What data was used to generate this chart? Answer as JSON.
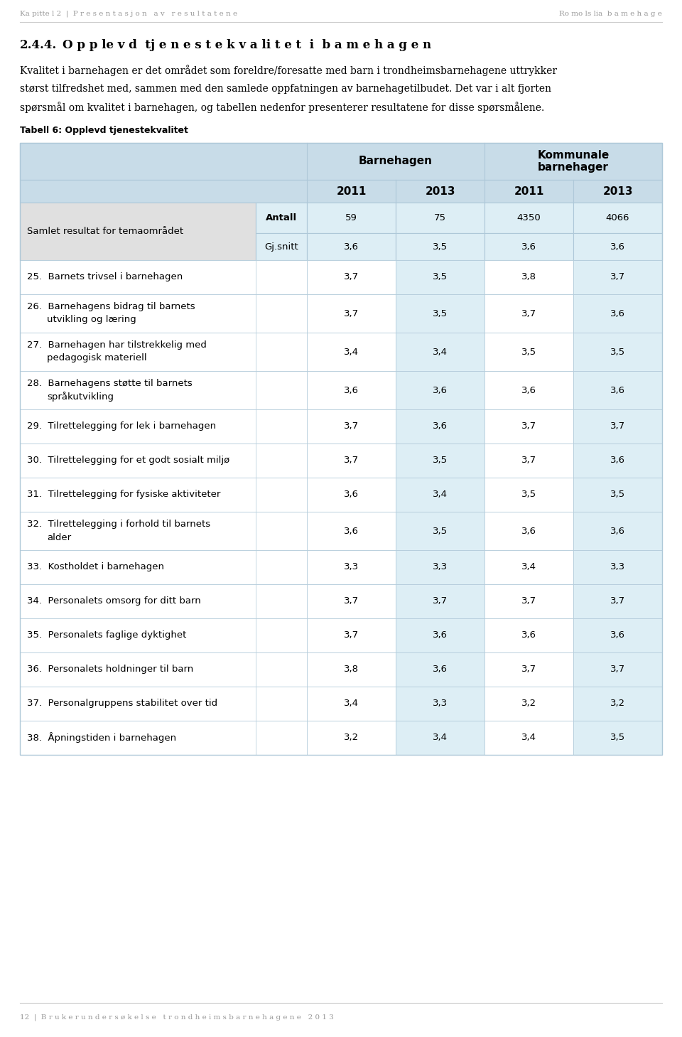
{
  "page_header_left": "Ka pitte l 2  |  P r e s e n t a s j o n   a v   r e s u l t a t e n e",
  "page_header_right": "Ro mo ls lia  b a m e h a g e",
  "section_num": "2.4.4.",
  "section_title": "O p p le v d  tj e n e s t e k v a li t e t  i  b a m e h a g e n",
  "body_line1": "Kvalitet i barnehagen er det området som foreldre/foresatte med barn i trondheimsbarnehagene uttrykker",
  "body_line2": "størst tilfredshet med, sammen med den samlede oppfatningen av barnehagetilbudet. Det var i alt fjorten",
  "body_line3": "spørsmål om kvalitet i barnehagen, og tabellen nedenfor presenterer resultatene for disse spørsmålene.",
  "table_title": "Tabell 6: Opplevd tjenestekvalitet",
  "col_header_1": "Barnehagen",
  "col_header_2": "Kommunale\nbarnehager",
  "year_headers": [
    "2011",
    "2013",
    "2011",
    "2013"
  ],
  "row_label_antall": "Antall",
  "row_label_gjsnitt": "Gj.snitt",
  "row_samlet": "Samlet resultat for temaområdet",
  "antall_values": [
    "59",
    "75",
    "4350",
    "4066"
  ],
  "gjsnitt_values": [
    "3,6",
    "3,5",
    "3,6",
    "3,6"
  ],
  "rows": [
    {
      "num": "25.",
      "label": "Barnets trivsel i barnehagen",
      "vals": [
        "3,7",
        "3,5",
        "3,8",
        "3,7"
      ],
      "multiline": false
    },
    {
      "num": "26.",
      "label1": "Barnehagens bidrag til barnets",
      "label2": "utvikling og læring",
      "vals": [
        "3,7",
        "3,5",
        "3,7",
        "3,6"
      ],
      "multiline": true
    },
    {
      "num": "27.",
      "label1": "Barnehagen har tilstrekkelig med",
      "label2": "pedagogisk materiell",
      "vals": [
        "3,4",
        "3,4",
        "3,5",
        "3,5"
      ],
      "multiline": true
    },
    {
      "num": "28.",
      "label1": "Barnehagens støtte til barnets",
      "label2": "språkutvikling",
      "vals": [
        "3,6",
        "3,6",
        "3,6",
        "3,6"
      ],
      "multiline": true
    },
    {
      "num": "29.",
      "label": "Tilrettelegging for lek i barnehagen",
      "vals": [
        "3,7",
        "3,6",
        "3,7",
        "3,7"
      ],
      "multiline": false
    },
    {
      "num": "30.",
      "label": "Tilrettelegging for et godt sosialt miljø",
      "vals": [
        "3,7",
        "3,5",
        "3,7",
        "3,6"
      ],
      "multiline": false
    },
    {
      "num": "31.",
      "label": "Tilrettelegging for fysiske aktiviteter",
      "vals": [
        "3,6",
        "3,4",
        "3,5",
        "3,5"
      ],
      "multiline": false
    },
    {
      "num": "32.",
      "label1": "Tilrettelegging i forhold til barnets",
      "label2": "alder",
      "vals": [
        "3,6",
        "3,5",
        "3,6",
        "3,6"
      ],
      "multiline": true
    },
    {
      "num": "33.",
      "label": "Kostholdet i barnehagen",
      "vals": [
        "3,3",
        "3,3",
        "3,4",
        "3,3"
      ],
      "multiline": false
    },
    {
      "num": "34.",
      "label": "Personalets omsorg for ditt barn",
      "vals": [
        "3,7",
        "3,7",
        "3,7",
        "3,7"
      ],
      "multiline": false
    },
    {
      "num": "35.",
      "label": "Personalets faglige dyktighet",
      "vals": [
        "3,7",
        "3,6",
        "3,6",
        "3,6"
      ],
      "multiline": false
    },
    {
      "num": "36.",
      "label": "Personalets holdninger til barn",
      "vals": [
        "3,8",
        "3,6",
        "3,7",
        "3,7"
      ],
      "multiline": false
    },
    {
      "num": "37.",
      "label": "Personalgruppens stabilitet over tid",
      "vals": [
        "3,4",
        "3,3",
        "3,2",
        "3,2"
      ],
      "multiline": false
    },
    {
      "num": "38.",
      "label": "Åpningstiden i barnehagen",
      "vals": [
        "3,2",
        "3,4",
        "3,4",
        "3,5"
      ],
      "multiline": false
    }
  ],
  "footer_text": "12  |  B r u k e r u n d e r s ø k e l s e   t r o n d h e i m s b a r n e h a g e n e   2 0 1 3",
  "colors": {
    "header_bg": "#c8dce8",
    "light_blue": "#ddeef5",
    "white": "#ffffff",
    "light_gray": "#e0e0e0",
    "border": "#aec8d8",
    "page_header_text": "#999999",
    "footer_text": "#999999"
  }
}
